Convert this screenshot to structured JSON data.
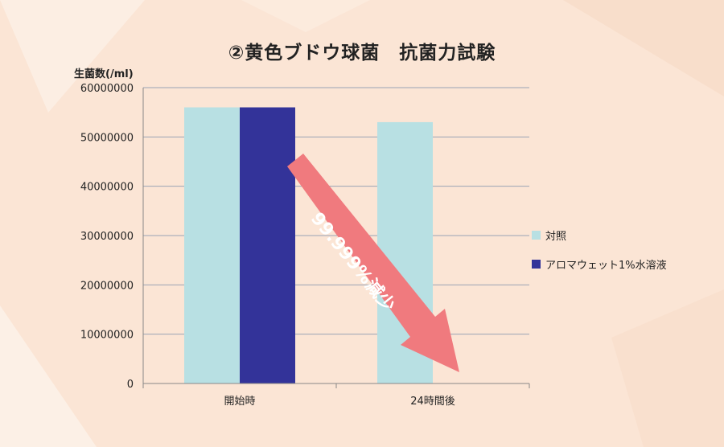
{
  "title": "②黄色ブドウ球菌　抗菌力試験",
  "chart_data": {
    "type": "bar",
    "title": "②黄色ブドウ球菌　抗菌力試験",
    "ylabel": "生菌数(/ml)",
    "xlabel": "",
    "categories": [
      "開始時",
      "24時間後"
    ],
    "series": [
      {
        "name": "対照",
        "values": [
          56000000,
          53000000
        ],
        "color": "#b8e0e3"
      },
      {
        "name": "アロマウェット1%水溶液",
        "values": [
          56000000,
          0
        ],
        "color": "#333399"
      }
    ],
    "ylim": [
      0,
      60000000
    ],
    "yticks": [
      "60000000",
      "50000000",
      "40000000",
      "30000000",
      "20000000",
      "10000000",
      "0"
    ],
    "grid": true,
    "legend": "right",
    "annotation": {
      "text": "99.999%減少",
      "color": "#f07a7e"
    }
  }
}
